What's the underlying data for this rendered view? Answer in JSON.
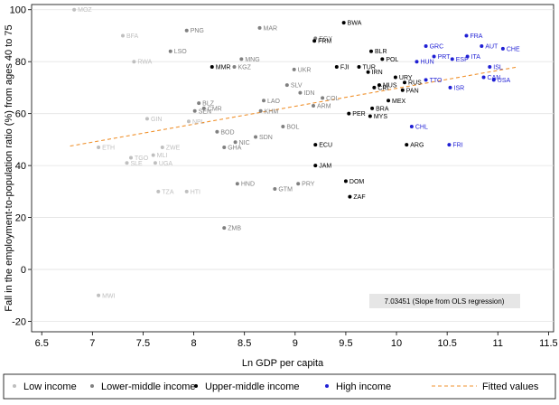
{
  "chart_data": {
    "type": "scatter",
    "xlabel": "Ln GDP per capita",
    "ylabel": "Fall in the employment-to-population ratio (%) from ages 40 to 75",
    "xlim": [
      6.4,
      11.55
    ],
    "ylim": [
      -24,
      102
    ],
    "xticks": [
      "6.5",
      "7",
      "7.5",
      "8",
      "8.5",
      "9",
      "9.5",
      "10",
      "10.5",
      "11",
      "11.5"
    ],
    "yticks": [
      "-20",
      "0",
      "20",
      "40",
      "60",
      "80",
      "100"
    ],
    "grid": true,
    "annotation": "7.03451 (Slope from OLS regression)",
    "fitted_line": {
      "x": [
        6.78,
        11.2
      ],
      "y": [
        47.5,
        78.0
      ]
    },
    "legend_position": "bottom",
    "groups": [
      {
        "name": "Low income",
        "color": "#bfbfbf",
        "points": [
          {
            "label": "MOZ",
            "x": 6.82,
            "y": 100
          },
          {
            "label": "BFA",
            "x": 7.3,
            "y": 90
          },
          {
            "label": "RWA",
            "x": 7.41,
            "y": 80
          },
          {
            "label": "ETH",
            "x": 7.06,
            "y": 47
          },
          {
            "label": "GIN",
            "x": 7.54,
            "y": 58
          },
          {
            "label": "TGO",
            "x": 7.38,
            "y": 43
          },
          {
            "label": "SLE",
            "x": 7.34,
            "y": 41
          },
          {
            "label": "MLI",
            "x": 7.6,
            "y": 44
          },
          {
            "label": "UGA",
            "x": 7.62,
            "y": 41
          },
          {
            "label": "ZWE",
            "x": 7.69,
            "y": 47
          },
          {
            "label": "TZA",
            "x": 7.65,
            "y": 30
          },
          {
            "label": "HTI",
            "x": 7.93,
            "y": 30
          },
          {
            "label": "NPL",
            "x": 7.95,
            "y": 57
          },
          {
            "label": "MWI",
            "x": 7.06,
            "y": -10
          }
        ]
      },
      {
        "name": "Lower-middle income",
        "color": "#808080",
        "points": [
          {
            "label": "PNG",
            "x": 7.93,
            "y": 92
          },
          {
            "label": "LSO",
            "x": 7.77,
            "y": 84
          },
          {
            "label": "MAR",
            "x": 8.65,
            "y": 93
          },
          {
            "label": "EGY",
            "x": 9.2,
            "y": 89
          },
          {
            "label": "MNG",
            "x": 8.47,
            "y": 81
          },
          {
            "label": "KGZ",
            "x": 8.4,
            "y": 78
          },
          {
            "label": "UKR",
            "x": 8.99,
            "y": 77
          },
          {
            "label": "BLZ",
            "x": 8.05,
            "y": 64
          },
          {
            "label": "SEN",
            "x": 8.01,
            "y": 61
          },
          {
            "label": "CMR",
            "x": 8.1,
            "y": 62
          },
          {
            "label": "BOD",
            "x": 8.23,
            "y": 53
          },
          {
            "label": "NIC",
            "x": 8.41,
            "y": 49
          },
          {
            "label": "GHA",
            "x": 8.3,
            "y": 47
          },
          {
            "label": "SDN",
            "x": 8.61,
            "y": 51
          },
          {
            "label": "LAO",
            "x": 8.69,
            "y": 65
          },
          {
            "label": "KHM",
            "x": 8.66,
            "y": 61
          },
          {
            "label": "SLV",
            "x": 8.92,
            "y": 71
          },
          {
            "label": "IDN",
            "x": 9.05,
            "y": 68
          },
          {
            "label": "COL",
            "x": 9.27,
            "y": 66
          },
          {
            "label": "ARM",
            "x": 9.18,
            "y": 63
          },
          {
            "label": "BOL",
            "x": 8.88,
            "y": 55
          },
          {
            "label": "HND",
            "x": 8.43,
            "y": 33
          },
          {
            "label": "GTM",
            "x": 8.8,
            "y": 31
          },
          {
            "label": "PRY",
            "x": 9.03,
            "y": 33
          },
          {
            "label": "ZMB",
            "x": 8.3,
            "y": 16
          }
        ]
      },
      {
        "name": "Upper-middle income",
        "color": "#000000",
        "points": [
          {
            "label": "BWA",
            "x": 9.48,
            "y": 95
          },
          {
            "label": "FRM",
            "x": 9.19,
            "y": 88
          },
          {
            "label": "MMR",
            "x": 8.18,
            "y": 78
          },
          {
            "label": "BLR",
            "x": 9.75,
            "y": 84
          },
          {
            "label": "POL",
            "x": 9.86,
            "y": 81
          },
          {
            "label": "FJI",
            "x": 9.41,
            "y": 78
          },
          {
            "label": "TUR",
            "x": 9.63,
            "y": 78
          },
          {
            "label": "IRN",
            "x": 9.72,
            "y": 76
          },
          {
            "label": "URY",
            "x": 9.99,
            "y": 74
          },
          {
            "label": "RUS",
            "x": 10.08,
            "y": 72
          },
          {
            "label": "MUS",
            "x": 9.83,
            "y": 71
          },
          {
            "label": "CRI",
            "x": 9.78,
            "y": 70
          },
          {
            "label": "PAN",
            "x": 10.06,
            "y": 69
          },
          {
            "label": "MEX",
            "x": 9.92,
            "y": 65
          },
          {
            "label": "BRA",
            "x": 9.76,
            "y": 62
          },
          {
            "label": "PER",
            "x": 9.53,
            "y": 60
          },
          {
            "label": "MYS",
            "x": 9.74,
            "y": 59
          },
          {
            "label": "ECU",
            "x": 9.2,
            "y": 48
          },
          {
            "label": "ARG",
            "x": 10.1,
            "y": 48
          },
          {
            "label": "JAM",
            "x": 9.2,
            "y": 40
          },
          {
            "label": "DOM",
            "x": 9.5,
            "y": 34
          },
          {
            "label": "ZAF",
            "x": 9.54,
            "y": 28
          }
        ]
      },
      {
        "name": "High income",
        "color": "#1f1fd4",
        "points": [
          {
            "label": "FRA",
            "x": 10.69,
            "y": 90
          },
          {
            "label": "GRC",
            "x": 10.29,
            "y": 86
          },
          {
            "label": "AUT",
            "x": 10.84,
            "y": 86
          },
          {
            "label": "CHE",
            "x": 11.05,
            "y": 85
          },
          {
            "label": "PRT",
            "x": 10.37,
            "y": 82
          },
          {
            "label": "ESP",
            "x": 10.55,
            "y": 81
          },
          {
            "label": "ITA",
            "x": 10.7,
            "y": 82
          },
          {
            "label": "HUN",
            "x": 10.2,
            "y": 80
          },
          {
            "label": "ISL",
            "x": 10.92,
            "y": 78
          },
          {
            "label": "TTO",
            "x": 10.29,
            "y": 73
          },
          {
            "label": "CAN",
            "x": 10.86,
            "y": 74
          },
          {
            "label": "USA",
            "x": 10.96,
            "y": 73
          },
          {
            "label": "ISR",
            "x": 10.53,
            "y": 70
          },
          {
            "label": "CHL",
            "x": 10.15,
            "y": 55
          },
          {
            "label": "FRI",
            "x": 10.52,
            "y": 48
          }
        ]
      }
    ],
    "legend": [
      {
        "label": "Low income",
        "kind": "dot",
        "color": "#bfbfbf"
      },
      {
        "label": "Lower-middle income",
        "kind": "dot",
        "color": "#808080"
      },
      {
        "label": "Upper-middle income",
        "kind": "dot",
        "color": "#000000"
      },
      {
        "label": "High income",
        "kind": "dot",
        "color": "#1f1fd4"
      },
      {
        "label": "Fitted values",
        "kind": "dash",
        "color": "#f0922e"
      }
    ]
  }
}
